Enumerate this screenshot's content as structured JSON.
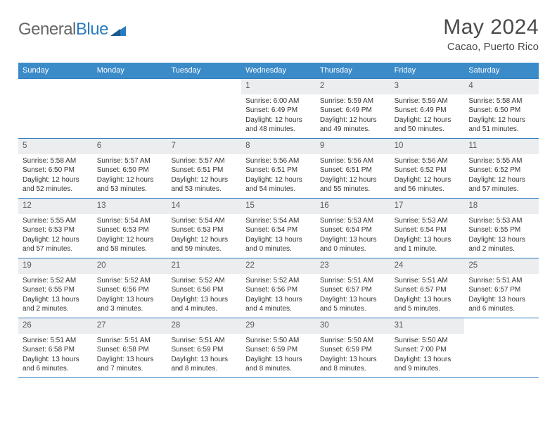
{
  "logo": {
    "general": "General",
    "blue": "Blue"
  },
  "title": "May 2024",
  "location": "Cacao, Puerto Rico",
  "colors": {
    "header_bg": "#3b8bc9",
    "border": "#2b7bbf",
    "num_bg": "#ecedef",
    "text": "#333333",
    "title_text": "#4a4a4a",
    "logo_gray": "#666666",
    "logo_blue": "#2b7bbf"
  },
  "dayHeaders": [
    "Sunday",
    "Monday",
    "Tuesday",
    "Wednesday",
    "Thursday",
    "Friday",
    "Saturday"
  ],
  "weeks": [
    [
      {
        "n": "",
        "lines": []
      },
      {
        "n": "",
        "lines": []
      },
      {
        "n": "",
        "lines": []
      },
      {
        "n": "1",
        "lines": [
          "Sunrise: 6:00 AM",
          "Sunset: 6:49 PM",
          "Daylight: 12 hours",
          "and 48 minutes."
        ]
      },
      {
        "n": "2",
        "lines": [
          "Sunrise: 5:59 AM",
          "Sunset: 6:49 PM",
          "Daylight: 12 hours",
          "and 49 minutes."
        ]
      },
      {
        "n": "3",
        "lines": [
          "Sunrise: 5:59 AM",
          "Sunset: 6:49 PM",
          "Daylight: 12 hours",
          "and 50 minutes."
        ]
      },
      {
        "n": "4",
        "lines": [
          "Sunrise: 5:58 AM",
          "Sunset: 6:50 PM",
          "Daylight: 12 hours",
          "and 51 minutes."
        ]
      }
    ],
    [
      {
        "n": "5",
        "lines": [
          "Sunrise: 5:58 AM",
          "Sunset: 6:50 PM",
          "Daylight: 12 hours",
          "and 52 minutes."
        ]
      },
      {
        "n": "6",
        "lines": [
          "Sunrise: 5:57 AM",
          "Sunset: 6:50 PM",
          "Daylight: 12 hours",
          "and 53 minutes."
        ]
      },
      {
        "n": "7",
        "lines": [
          "Sunrise: 5:57 AM",
          "Sunset: 6:51 PM",
          "Daylight: 12 hours",
          "and 53 minutes."
        ]
      },
      {
        "n": "8",
        "lines": [
          "Sunrise: 5:56 AM",
          "Sunset: 6:51 PM",
          "Daylight: 12 hours",
          "and 54 minutes."
        ]
      },
      {
        "n": "9",
        "lines": [
          "Sunrise: 5:56 AM",
          "Sunset: 6:51 PM",
          "Daylight: 12 hours",
          "and 55 minutes."
        ]
      },
      {
        "n": "10",
        "lines": [
          "Sunrise: 5:56 AM",
          "Sunset: 6:52 PM",
          "Daylight: 12 hours",
          "and 56 minutes."
        ]
      },
      {
        "n": "11",
        "lines": [
          "Sunrise: 5:55 AM",
          "Sunset: 6:52 PM",
          "Daylight: 12 hours",
          "and 57 minutes."
        ]
      }
    ],
    [
      {
        "n": "12",
        "lines": [
          "Sunrise: 5:55 AM",
          "Sunset: 6:53 PM",
          "Daylight: 12 hours",
          "and 57 minutes."
        ]
      },
      {
        "n": "13",
        "lines": [
          "Sunrise: 5:54 AM",
          "Sunset: 6:53 PM",
          "Daylight: 12 hours",
          "and 58 minutes."
        ]
      },
      {
        "n": "14",
        "lines": [
          "Sunrise: 5:54 AM",
          "Sunset: 6:53 PM",
          "Daylight: 12 hours",
          "and 59 minutes."
        ]
      },
      {
        "n": "15",
        "lines": [
          "Sunrise: 5:54 AM",
          "Sunset: 6:54 PM",
          "Daylight: 13 hours",
          "and 0 minutes."
        ]
      },
      {
        "n": "16",
        "lines": [
          "Sunrise: 5:53 AM",
          "Sunset: 6:54 PM",
          "Daylight: 13 hours",
          "and 0 minutes."
        ]
      },
      {
        "n": "17",
        "lines": [
          "Sunrise: 5:53 AM",
          "Sunset: 6:54 PM",
          "Daylight: 13 hours",
          "and 1 minute."
        ]
      },
      {
        "n": "18",
        "lines": [
          "Sunrise: 5:53 AM",
          "Sunset: 6:55 PM",
          "Daylight: 13 hours",
          "and 2 minutes."
        ]
      }
    ],
    [
      {
        "n": "19",
        "lines": [
          "Sunrise: 5:52 AM",
          "Sunset: 6:55 PM",
          "Daylight: 13 hours",
          "and 2 minutes."
        ]
      },
      {
        "n": "20",
        "lines": [
          "Sunrise: 5:52 AM",
          "Sunset: 6:56 PM",
          "Daylight: 13 hours",
          "and 3 minutes."
        ]
      },
      {
        "n": "21",
        "lines": [
          "Sunrise: 5:52 AM",
          "Sunset: 6:56 PM",
          "Daylight: 13 hours",
          "and 4 minutes."
        ]
      },
      {
        "n": "22",
        "lines": [
          "Sunrise: 5:52 AM",
          "Sunset: 6:56 PM",
          "Daylight: 13 hours",
          "and 4 minutes."
        ]
      },
      {
        "n": "23",
        "lines": [
          "Sunrise: 5:51 AM",
          "Sunset: 6:57 PM",
          "Daylight: 13 hours",
          "and 5 minutes."
        ]
      },
      {
        "n": "24",
        "lines": [
          "Sunrise: 5:51 AM",
          "Sunset: 6:57 PM",
          "Daylight: 13 hours",
          "and 5 minutes."
        ]
      },
      {
        "n": "25",
        "lines": [
          "Sunrise: 5:51 AM",
          "Sunset: 6:57 PM",
          "Daylight: 13 hours",
          "and 6 minutes."
        ]
      }
    ],
    [
      {
        "n": "26",
        "lines": [
          "Sunrise: 5:51 AM",
          "Sunset: 6:58 PM",
          "Daylight: 13 hours",
          "and 6 minutes."
        ]
      },
      {
        "n": "27",
        "lines": [
          "Sunrise: 5:51 AM",
          "Sunset: 6:58 PM",
          "Daylight: 13 hours",
          "and 7 minutes."
        ]
      },
      {
        "n": "28",
        "lines": [
          "Sunrise: 5:51 AM",
          "Sunset: 6:59 PM",
          "Daylight: 13 hours",
          "and 8 minutes."
        ]
      },
      {
        "n": "29",
        "lines": [
          "Sunrise: 5:50 AM",
          "Sunset: 6:59 PM",
          "Daylight: 13 hours",
          "and 8 minutes."
        ]
      },
      {
        "n": "30",
        "lines": [
          "Sunrise: 5:50 AM",
          "Sunset: 6:59 PM",
          "Daylight: 13 hours",
          "and 8 minutes."
        ]
      },
      {
        "n": "31",
        "lines": [
          "Sunrise: 5:50 AM",
          "Sunset: 7:00 PM",
          "Daylight: 13 hours",
          "and 9 minutes."
        ]
      },
      {
        "n": "",
        "lines": []
      }
    ]
  ]
}
